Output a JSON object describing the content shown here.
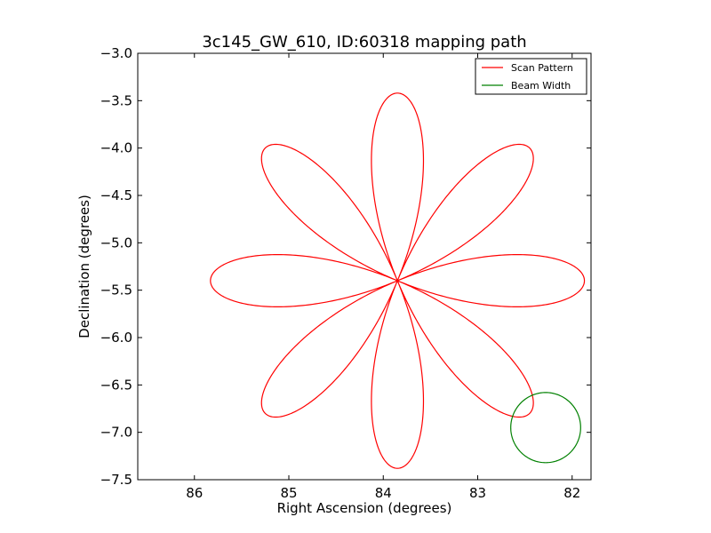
{
  "chart_data": {
    "type": "line",
    "title": "3c145_GW_610, ID:60318 mapping path",
    "xlabel": "Right Ascension (degrees)",
    "ylabel": "Declination (degrees)",
    "xlim": [
      86.6,
      81.8
    ],
    "ylim": [
      -7.5,
      -3.0
    ],
    "xticks": [
      86,
      85,
      84,
      83,
      82
    ],
    "xtick_labels": [
      "86",
      "85",
      "84",
      "83",
      "82"
    ],
    "yticks": [
      -7.5,
      -7.0,
      -6.5,
      -6.0,
      -5.5,
      -5.0,
      -4.5,
      -4.0,
      -3.5,
      -3.0
    ],
    "ytick_labels": [
      "−7.5",
      "−7.0",
      "−6.5",
      "−6.0",
      "−5.5",
      "−5.0",
      "−4.5",
      "−4.0",
      "−3.5",
      "−3.0"
    ],
    "grid": false,
    "legend_position": "top-right",
    "series": [
      {
        "name": "Scan Pattern",
        "color": "#ff0000",
        "pattern": "rose",
        "center": [
          83.85,
          -5.4
        ],
        "radius": 1.98,
        "petals": 8,
        "petal_angles_deg": [
          0,
          45,
          90,
          135,
          180,
          225,
          270,
          315
        ]
      },
      {
        "name": "Beam Width",
        "color": "#008000",
        "pattern": "circle",
        "center": [
          82.28,
          -6.95
        ],
        "radius": 0.37
      }
    ]
  }
}
